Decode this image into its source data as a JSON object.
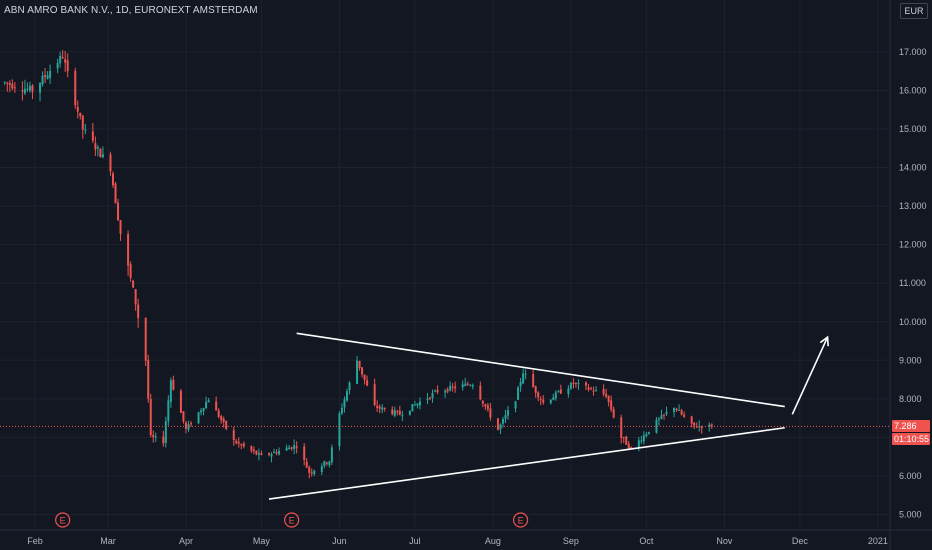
{
  "header": {
    "title": "ABN AMRO BANK N.V., 1D, EURONEXT AMSTERDAM",
    "currency": "EUR"
  },
  "price_label": {
    "value": "7.286",
    "countdown": "01:10:55"
  },
  "colors": {
    "background": "#131722",
    "up": "#26a69a",
    "down": "#ef5350",
    "grid": "#1e222d",
    "text": "#b2b5be",
    "trendline": "#ffffff",
    "earnings_marker": "#ef5350"
  },
  "events": [
    {
      "label": "E",
      "date": "2020-02-12"
    },
    {
      "label": "E",
      "date": "2020-05-13"
    },
    {
      "label": "E",
      "date": "2020-08-12"
    }
  ],
  "chart_data": {
    "type": "candlestick",
    "title": "ABN AMRO BANK N.V., 1D, EURONEXT AMSTERDAM",
    "ylabel": "EUR",
    "ylim": [
      4.8,
      17.6
    ],
    "y_ticks": [
      "17.000",
      "16.000",
      "15.000",
      "14.000",
      "13.000",
      "12.000",
      "11.000",
      "10.000",
      "9.000",
      "8.000",
      "7.000",
      "6.000",
      "5.000"
    ],
    "x_ticks": [
      "Feb",
      "Mar",
      "Apr",
      "May",
      "Jun",
      "Jul",
      "Aug",
      "Sep",
      "Oct",
      "Nov",
      "Dec",
      "2021"
    ],
    "grid": true,
    "last_price": 7.286,
    "series": [
      {
        "date": "2020-01-20",
        "close": 16.2
      },
      {
        "date": "2020-01-31",
        "close": 16.0
      },
      {
        "date": "2020-02-12",
        "close": 16.9
      },
      {
        "date": "2020-02-20",
        "close": 15.0
      },
      {
        "date": "2020-03-02",
        "close": 14.0
      },
      {
        "date": "2020-03-06",
        "close": 12.3
      },
      {
        "date": "2020-03-12",
        "close": 10.5
      },
      {
        "date": "2020-03-16",
        "close": 9.0
      },
      {
        "date": "2020-03-18",
        "close": 7.0
      },
      {
        "date": "2020-03-23",
        "close": 6.9
      },
      {
        "date": "2020-03-26",
        "close": 8.5
      },
      {
        "date": "2020-04-01",
        "close": 7.2
      },
      {
        "date": "2020-04-10",
        "close": 8.0
      },
      {
        "date": "2020-04-20",
        "close": 6.9
      },
      {
        "date": "2020-05-01",
        "close": 6.5
      },
      {
        "date": "2020-05-15",
        "close": 6.8
      },
      {
        "date": "2020-05-20",
        "close": 6.1
      },
      {
        "date": "2020-05-28",
        "close": 6.4
      },
      {
        "date": "2020-06-01",
        "close": 7.6
      },
      {
        "date": "2020-06-08",
        "close": 9.0
      },
      {
        "date": "2020-06-15",
        "close": 7.8
      },
      {
        "date": "2020-06-25",
        "close": 7.6
      },
      {
        "date": "2020-07-10",
        "close": 8.2
      },
      {
        "date": "2020-07-24",
        "close": 8.4
      },
      {
        "date": "2020-08-03",
        "close": 7.2
      },
      {
        "date": "2020-08-10",
        "close": 8.0
      },
      {
        "date": "2020-08-13",
        "close": 8.7
      },
      {
        "date": "2020-08-21",
        "close": 7.9
      },
      {
        "date": "2020-09-02",
        "close": 8.4
      },
      {
        "date": "2020-09-15",
        "close": 8.1
      },
      {
        "date": "2020-09-21",
        "close": 7.0
      },
      {
        "date": "2020-09-25",
        "close": 6.7
      },
      {
        "date": "2020-10-05",
        "close": 7.4
      },
      {
        "date": "2020-10-12",
        "close": 7.8
      },
      {
        "date": "2020-10-19",
        "close": 7.3
      },
      {
        "date": "2020-10-27",
        "close": 7.29
      }
    ],
    "annotations": [
      {
        "type": "trendline",
        "from": {
          "date": "2020-05-15",
          "price": 9.7
        },
        "to": {
          "date": "2020-11-25",
          "price": 7.8
        }
      },
      {
        "type": "trendline",
        "from": {
          "date": "2020-05-04",
          "price": 5.4
        },
        "to": {
          "date": "2020-11-25",
          "price": 7.25
        }
      },
      {
        "type": "arrow",
        "from": {
          "date": "2020-11-28",
          "price": 7.6
        },
        "to": {
          "date": "2020-12-12",
          "price": 9.6
        }
      }
    ]
  }
}
